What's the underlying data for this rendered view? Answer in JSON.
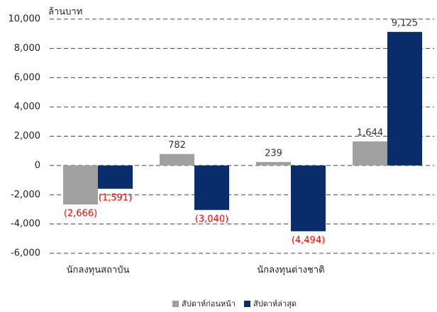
{
  "chart_data": {
    "type": "bar",
    "y_axis_label": "ล้านบาท",
    "categories": [
      "นักลงทุนสถาบัน",
      null,
      "นักลงทุนต่างชาติ",
      null
    ],
    "series": [
      {
        "name": "สัปดาห์ก่อนหน้า",
        "color": "#a0a0a0",
        "values": [
          -2666,
          782,
          239,
          1644
        ],
        "value_labels": [
          "(2,666)",
          "782",
          "239",
          "1,644"
        ]
      },
      {
        "name": "สัปดาห์ล่าสุด",
        "color": "#0b2c6b",
        "values": [
          -1591,
          -3040,
          -4494,
          9125
        ],
        "value_labels": [
          "(1,591)",
          "(3,040)",
          "(4,494)",
          "9,125"
        ]
      }
    ],
    "ylim": [
      -6000,
      10000
    ],
    "yticks": [
      {
        "value": -6000,
        "label": "-6,000"
      },
      {
        "value": -4000,
        "label": "-4,000"
      },
      {
        "value": -2000,
        "label": "-2,000"
      },
      0,
      {
        "value": 2000,
        "label": "2,000"
      },
      {
        "value": 4000,
        "label": "4,000"
      },
      {
        "value": 6000,
        "label": "6,000"
      },
      {
        "value": 8000,
        "label": "8,000"
      },
      {
        "value": 10000,
        "label": "10,000"
      }
    ],
    "grid": true,
    "legend": "bottom"
  }
}
